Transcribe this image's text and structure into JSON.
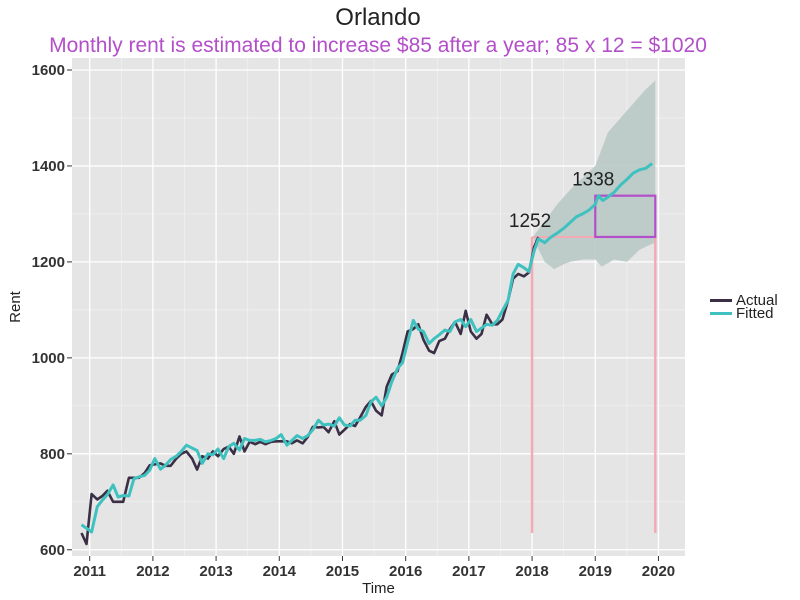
{
  "chart_data": {
    "type": "line",
    "title": "Orlando",
    "subtitle": "Monthly rent is estimated to increase $85 after a year; 85 x 12 = $1020",
    "xlabel": "Time",
    "ylabel": "Rent",
    "xlim": [
      2010.72,
      2020.42
    ],
    "ylim": [
      587,
      1625
    ],
    "x_ticks": [
      2011,
      2012,
      2013,
      2014,
      2015,
      2016,
      2017,
      2018,
      2019,
      2020
    ],
    "y_ticks": [
      600,
      800,
      1000,
      1200,
      1400,
      1600
    ],
    "grid": true,
    "legend_position": "right",
    "colors": {
      "actual": "#3a2f45",
      "fitted": "#3fc1bf",
      "band": "#b8c9c4",
      "highlight": "#b24fc9",
      "marker": "#f4aab4",
      "panel": "#e5e5e5",
      "grid": "#ffffff"
    },
    "series": [
      {
        "name": "Actual",
        "points": [
          [
            2010.87,
            635
          ],
          [
            2010.95,
            612
          ],
          [
            2011.03,
            716
          ],
          [
            2011.12,
            705
          ],
          [
            2011.2,
            712
          ],
          [
            2011.28,
            723
          ],
          [
            2011.37,
            700
          ],
          [
            2011.45,
            700
          ],
          [
            2011.53,
            700
          ],
          [
            2011.62,
            750
          ],
          [
            2011.7,
            750
          ],
          [
            2011.78,
            750
          ],
          [
            2011.87,
            760
          ],
          [
            2011.95,
            776
          ],
          [
            2012.03,
            778
          ],
          [
            2012.12,
            780
          ],
          [
            2012.2,
            775
          ],
          [
            2012.28,
            775
          ],
          [
            2012.37,
            790
          ],
          [
            2012.45,
            800
          ],
          [
            2012.53,
            805
          ],
          [
            2012.62,
            790
          ],
          [
            2012.7,
            767
          ],
          [
            2012.78,
            795
          ],
          [
            2012.87,
            790
          ],
          [
            2012.95,
            805
          ],
          [
            2013.03,
            795
          ],
          [
            2013.12,
            810
          ],
          [
            2013.2,
            815
          ],
          [
            2013.28,
            800
          ],
          [
            2013.37,
            836
          ],
          [
            2013.45,
            805
          ],
          [
            2013.53,
            825
          ],
          [
            2013.62,
            820
          ],
          [
            2013.7,
            825
          ],
          [
            2013.78,
            820
          ],
          [
            2013.87,
            825
          ],
          [
            2013.95,
            826
          ],
          [
            2014.03,
            826
          ],
          [
            2014.12,
            826
          ],
          [
            2014.2,
            822
          ],
          [
            2014.28,
            828
          ],
          [
            2014.37,
            822
          ],
          [
            2014.45,
            835
          ],
          [
            2014.53,
            856
          ],
          [
            2014.62,
            855
          ],
          [
            2014.7,
            856
          ],
          [
            2014.78,
            845
          ],
          [
            2014.87,
            868
          ],
          [
            2014.95,
            840
          ],
          [
            2015.03,
            850
          ],
          [
            2015.12,
            862
          ],
          [
            2015.2,
            858
          ],
          [
            2015.28,
            876
          ],
          [
            2015.37,
            898
          ],
          [
            2015.45,
            910
          ],
          [
            2015.53,
            890
          ],
          [
            2015.62,
            880
          ],
          [
            2015.7,
            940
          ],
          [
            2015.78,
            965
          ],
          [
            2015.87,
            972
          ],
          [
            2015.95,
            1010
          ],
          [
            2016.03,
            1055
          ],
          [
            2016.12,
            1060
          ],
          [
            2016.2,
            1070
          ],
          [
            2016.28,
            1038
          ],
          [
            2016.37,
            1015
          ],
          [
            2016.45,
            1010
          ],
          [
            2016.53,
            1035
          ],
          [
            2016.62,
            1040
          ],
          [
            2016.7,
            1060
          ],
          [
            2016.78,
            1075
          ],
          [
            2016.87,
            1050
          ],
          [
            2016.95,
            1098
          ],
          [
            2017.03,
            1055
          ],
          [
            2017.12,
            1040
          ],
          [
            2017.2,
            1050
          ],
          [
            2017.28,
            1090
          ],
          [
            2017.37,
            1070
          ],
          [
            2017.45,
            1070
          ],
          [
            2017.53,
            1080
          ],
          [
            2017.62,
            1120
          ],
          [
            2017.7,
            1165
          ],
          [
            2017.78,
            1175
          ],
          [
            2017.87,
            1170
          ],
          [
            2017.95,
            1178
          ],
          [
            2018.03,
            1230
          ],
          [
            2018.1,
            1252
          ]
        ]
      },
      {
        "name": "Fitted",
        "points": [
          [
            2010.87,
            652
          ],
          [
            2010.95,
            645
          ],
          [
            2011.03,
            637
          ],
          [
            2011.12,
            690
          ],
          [
            2011.2,
            703
          ],
          [
            2011.28,
            715
          ],
          [
            2011.37,
            735
          ],
          [
            2011.45,
            710
          ],
          [
            2011.53,
            713
          ],
          [
            2011.62,
            712
          ],
          [
            2011.7,
            748
          ],
          [
            2011.78,
            752
          ],
          [
            2011.87,
            755
          ],
          [
            2011.95,
            766
          ],
          [
            2012.03,
            790
          ],
          [
            2012.12,
            768
          ],
          [
            2012.2,
            776
          ],
          [
            2012.28,
            788
          ],
          [
            2012.37,
            795
          ],
          [
            2012.45,
            805
          ],
          [
            2012.53,
            818
          ],
          [
            2012.62,
            812
          ],
          [
            2012.7,
            807
          ],
          [
            2012.78,
            780
          ],
          [
            2012.87,
            800
          ],
          [
            2012.95,
            798
          ],
          [
            2013.03,
            810
          ],
          [
            2013.12,
            790
          ],
          [
            2013.2,
            815
          ],
          [
            2013.28,
            822
          ],
          [
            2013.37,
            808
          ],
          [
            2013.45,
            832
          ],
          [
            2013.53,
            828
          ],
          [
            2013.62,
            828
          ],
          [
            2013.7,
            830
          ],
          [
            2013.78,
            825
          ],
          [
            2013.87,
            828
          ],
          [
            2013.95,
            832
          ],
          [
            2014.03,
            840
          ],
          [
            2014.12,
            818
          ],
          [
            2014.2,
            828
          ],
          [
            2014.28,
            838
          ],
          [
            2014.37,
            832
          ],
          [
            2014.45,
            838
          ],
          [
            2014.53,
            850
          ],
          [
            2014.62,
            870
          ],
          [
            2014.7,
            860
          ],
          [
            2014.78,
            862
          ],
          [
            2014.87,
            858
          ],
          [
            2014.95,
            875
          ],
          [
            2015.03,
            860
          ],
          [
            2015.12,
            858
          ],
          [
            2015.2,
            870
          ],
          [
            2015.28,
            870
          ],
          [
            2015.37,
            880
          ],
          [
            2015.45,
            908
          ],
          [
            2015.53,
            918
          ],
          [
            2015.62,
            900
          ],
          [
            2015.7,
            918
          ],
          [
            2015.78,
            950
          ],
          [
            2015.87,
            978
          ],
          [
            2015.95,
            990
          ],
          [
            2016.03,
            1032
          ],
          [
            2016.12,
            1078
          ],
          [
            2016.2,
            1060
          ],
          [
            2016.28,
            1055
          ],
          [
            2016.37,
            1030
          ],
          [
            2016.45,
            1040
          ],
          [
            2016.53,
            1048
          ],
          [
            2016.62,
            1058
          ],
          [
            2016.7,
            1055
          ],
          [
            2016.78,
            1075
          ],
          [
            2016.87,
            1080
          ],
          [
            2016.95,
            1065
          ],
          [
            2017.03,
            1080
          ],
          [
            2017.12,
            1055
          ],
          [
            2017.2,
            1062
          ],
          [
            2017.28,
            1070
          ],
          [
            2017.37,
            1068
          ],
          [
            2017.45,
            1078
          ],
          [
            2017.53,
            1098
          ],
          [
            2017.62,
            1120
          ],
          [
            2017.7,
            1175
          ],
          [
            2017.78,
            1195
          ],
          [
            2017.87,
            1188
          ],
          [
            2017.95,
            1180
          ],
          [
            2018.03,
            1222
          ],
          [
            2018.1,
            1248
          ],
          [
            2018.2,
            1240
          ],
          [
            2018.3,
            1252
          ],
          [
            2018.4,
            1260
          ],
          [
            2018.5,
            1270
          ],
          [
            2018.6,
            1282
          ],
          [
            2018.7,
            1294
          ],
          [
            2018.8,
            1300
          ],
          [
            2018.9,
            1308
          ],
          [
            2019.0,
            1320
          ],
          [
            2019.05,
            1338
          ],
          [
            2019.12,
            1328
          ],
          [
            2019.2,
            1335
          ],
          [
            2019.3,
            1345
          ],
          [
            2019.4,
            1360
          ],
          [
            2019.5,
            1372
          ],
          [
            2019.6,
            1385
          ],
          [
            2019.7,
            1392
          ],
          [
            2019.8,
            1395
          ],
          [
            2019.9,
            1405
          ]
        ]
      }
    ],
    "confidence_band": {
      "upper": [
        [
          2018.03,
          1255
        ],
        [
          2018.2,
          1285
        ],
        [
          2018.4,
          1320
        ],
        [
          2018.6,
          1350
        ],
        [
          2018.8,
          1375
        ],
        [
          2019.0,
          1400
        ],
        [
          2019.1,
          1435
        ],
        [
          2019.2,
          1470
        ],
        [
          2019.4,
          1500
        ],
        [
          2019.6,
          1530
        ],
        [
          2019.8,
          1560
        ],
        [
          2019.95,
          1578
        ]
      ],
      "lower": [
        [
          2018.03,
          1245
        ],
        [
          2018.2,
          1200
        ],
        [
          2018.35,
          1185
        ],
        [
          2018.5,
          1195
        ],
        [
          2018.6,
          1200
        ],
        [
          2018.8,
          1205
        ],
        [
          2019.0,
          1205
        ],
        [
          2019.1,
          1190
        ],
        [
          2019.3,
          1205
        ],
        [
          2019.5,
          1200
        ],
        [
          2019.7,
          1225
        ],
        [
          2019.85,
          1235
        ],
        [
          2019.95,
          1240
        ]
      ]
    },
    "annotations": [
      {
        "text": "1252",
        "x": 2018.0,
        "y": 1252
      },
      {
        "text": "1338",
        "x": 2019.0,
        "y": 1338
      }
    ],
    "highlight_box": {
      "x_range": [
        2019.0,
        2019.95
      ],
      "y_range": [
        1252,
        1338
      ]
    },
    "horizontal_marker": {
      "y": 1252,
      "x_range": [
        2018.0,
        2019.0
      ]
    },
    "vertical_markers": [
      {
        "x": 2018.0,
        "y_range": [
          635,
          1252
        ]
      },
      {
        "x": 2019.95,
        "y_range": [
          635,
          1252
        ]
      }
    ]
  }
}
